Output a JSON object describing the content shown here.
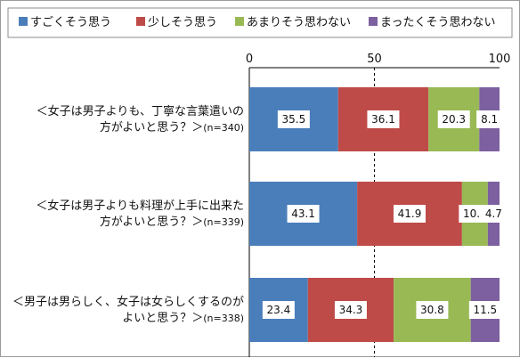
{
  "chart_data": {
    "type": "bar",
    "orientation": "horizontal",
    "stacked": true,
    "title": "",
    "xlabel": "",
    "ylabel": "",
    "xlim": [
      0,
      100
    ],
    "xticks": [
      0,
      50,
      100
    ],
    "grid": "dashed line at 50",
    "legend_position": "top",
    "categories": [
      {
        "line1": "＜女子は男子よりも、丁寧な言葉遣いの",
        "line2": "方がよいと思う？＞",
        "n": "(n=340)"
      },
      {
        "line1": "＜女子は男子よりも料理が上手に出来た",
        "line2": "方がよいと思う？＞",
        "n": "(n=339)"
      },
      {
        "line1": "＜男子は男らしく、女子は女らしくするのが",
        "line2": "よいと思う？＞",
        "n": "(n=338)"
      }
    ],
    "series": [
      {
        "name": "すごくそう思う",
        "color": "#4a7ebb",
        "values": [
          35.5,
          43.1,
          23.4
        ]
      },
      {
        "name": "少しそう思う",
        "color": "#be4b48",
        "values": [
          36.1,
          41.9,
          34.3
        ]
      },
      {
        "name": "あまりそう思わない",
        "color": "#98b954",
        "values": [
          20.3,
          10.3,
          30.8
        ]
      },
      {
        "name": "まったくそう思わない",
        "color": "#7d60a0",
        "values": [
          8.1,
          4.7,
          11.5
        ]
      }
    ]
  }
}
